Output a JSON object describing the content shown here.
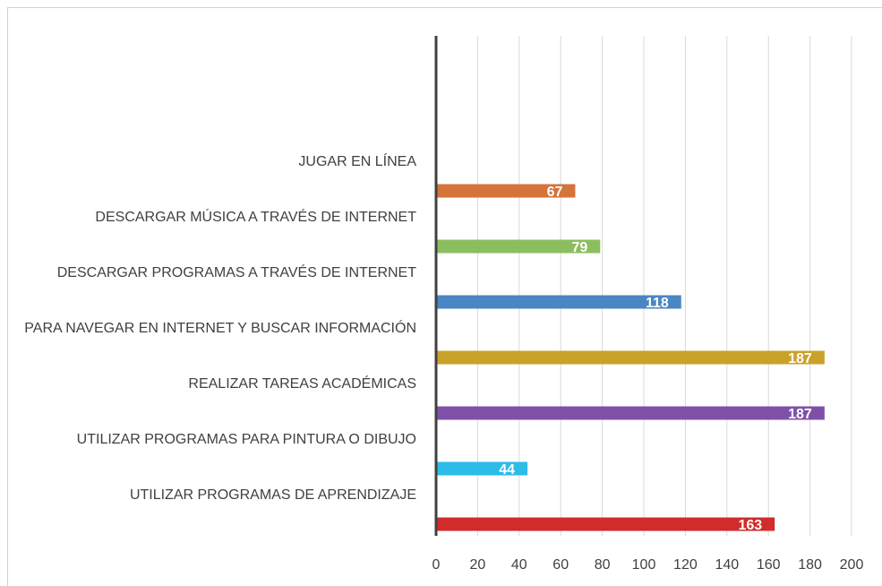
{
  "chart_data": {
    "type": "barh",
    "categories": [
      "JUGAR EN LÍNEA",
      "DESCARGAR MÚSICA A TRAVÉS DE INTERNET",
      "DESCARGAR PROGRAMAS A TRAVÉS DE INTERNET",
      "PARA NAVEGAR EN INTERNET Y BUSCAR INFORMACIÓN",
      "REALIZAR TAREAS ACADÉMICAS",
      "UTILIZAR PROGRAMAS PARA PINTURA O DIBUJO",
      "UTILIZAR PROGRAMAS DE APRENDIZAJE"
    ],
    "values": [
      67,
      79,
      118,
      187,
      187,
      44,
      163
    ],
    "colors": [
      "#d4733a",
      "#8cbd5f",
      "#4a86c4",
      "#c9a22a",
      "#7f50a8",
      "#2dbbe8",
      "#d12b2b"
    ],
    "xlim": [
      0,
      200
    ],
    "xticks": [
      0,
      20,
      40,
      60,
      80,
      100,
      120,
      140,
      160,
      180,
      200
    ],
    "grid": true
  }
}
